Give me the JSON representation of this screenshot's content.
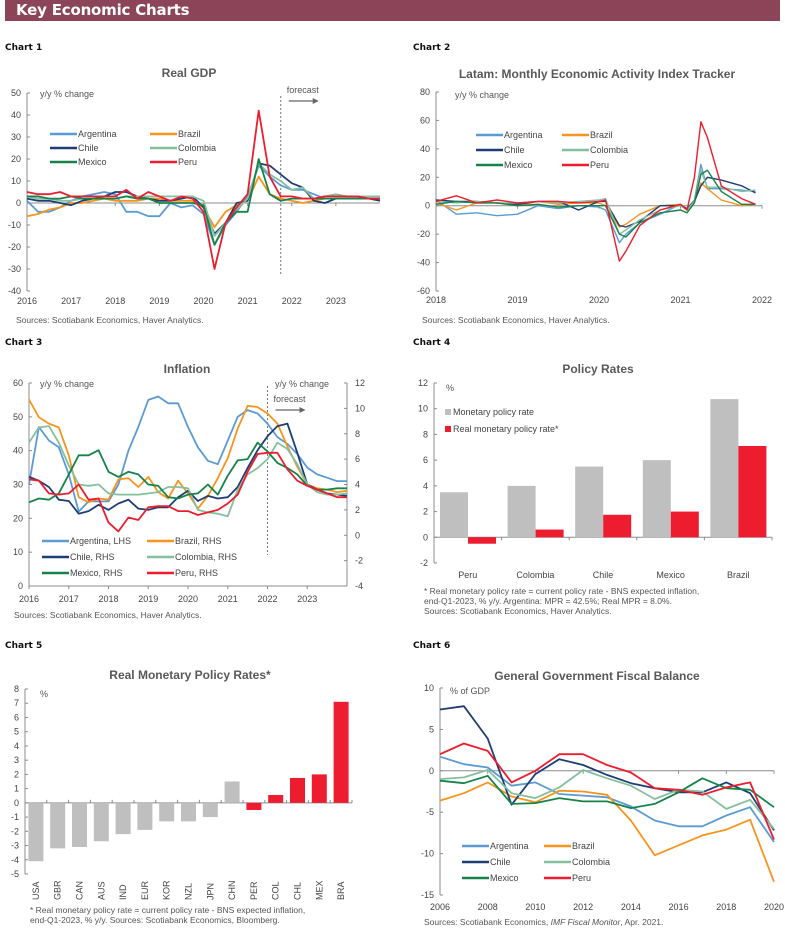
{
  "header": {
    "title": "Key Economic Charts"
  },
  "colors": {
    "Argentina": "#5b9bd5",
    "Brazil": "#f7941d",
    "Chile": "#1f3e75",
    "Colombia": "#86bf9e",
    "Mexico": "#17824a",
    "Peru": "#ed1c2e",
    "gray_bar": "#bfbfbf",
    "red_bar": "#ed1c2e",
    "banner": "#8c4459"
  },
  "chart_data": [
    {
      "id": "chart1",
      "label": "Chart 1",
      "type": "line",
      "title": "Real GDP",
      "ylabel": "y/y % change",
      "ylim": [
        -40,
        50
      ],
      "yticks": [
        -40,
        -30,
        -20,
        -10,
        0,
        10,
        20,
        30,
        40,
        50
      ],
      "xlim": [
        2016,
        2024
      ],
      "xticks": [
        "2016",
        "2017",
        "2018",
        "2019",
        "2020",
        "2021",
        "2022",
        "2023"
      ],
      "forecast_label": "forecast",
      "forecast_x": 2021.75,
      "source": "Sources: Scotiabank Economics, Haver Analytics.",
      "x": [
        2016,
        2016.25,
        2016.5,
        2016.75,
        2017,
        2017.25,
        2017.5,
        2017.75,
        2018,
        2018.25,
        2018.5,
        2018.75,
        2019,
        2019.25,
        2019.5,
        2019.75,
        2020,
        2020.25,
        2020.5,
        2020.75,
        2021,
        2021.25,
        2021.5,
        2021.75,
        2022,
        2022.25,
        2022.5,
        2022.75,
        2023,
        2023.25,
        2023.5,
        2023.75,
        2024
      ],
      "series": [
        {
          "name": "Argentina",
          "values": [
            1,
            -4,
            -4,
            -2,
            1,
            3,
            4,
            5,
            4,
            -4,
            -4,
            -6,
            -6,
            0,
            -2,
            -1,
            -5,
            -19,
            -10,
            -4,
            3,
            17,
            12,
            8,
            6,
            6,
            4,
            2,
            2,
            2,
            2,
            2,
            2
          ]
        },
        {
          "name": "Brazil",
          "values": [
            -6,
            -5,
            -3,
            -2,
            0,
            0,
            1,
            2,
            1,
            1,
            1,
            2,
            2,
            1,
            1,
            1,
            -2,
            -11,
            -4,
            -1,
            1,
            12,
            4,
            2,
            1,
            0,
            1,
            2,
            2,
            2,
            2,
            2,
            2
          ]
        },
        {
          "name": "Chile",
          "values": [
            2,
            1,
            1,
            0,
            -1,
            1,
            2,
            3,
            5,
            5,
            3,
            2,
            1,
            1,
            2,
            3,
            -2,
            -14,
            -9,
            0,
            1,
            18,
            17,
            13,
            9,
            7,
            1,
            0,
            2,
            2,
            2,
            2,
            1
          ]
        },
        {
          "name": "Colombia",
          "values": [
            3,
            2,
            2,
            1,
            1,
            2,
            2,
            2,
            2,
            3,
            3,
            3,
            3,
            3,
            3,
            3,
            1,
            -15,
            -9,
            -3,
            2,
            18,
            13,
            10,
            6,
            7,
            2,
            3,
            4,
            3,
            3,
            3,
            3
          ]
        },
        {
          "name": "Mexico",
          "values": [
            3,
            3,
            2,
            2,
            3,
            2,
            2,
            2,
            2,
            3,
            2,
            2,
            0,
            0,
            0,
            0,
            -1,
            -19,
            -9,
            -4,
            -4,
            20,
            4,
            1,
            2,
            2,
            2,
            2,
            2,
            2,
            2,
            2,
            2
          ]
        },
        {
          "name": "Peru",
          "values": [
            5,
            4,
            4,
            5,
            3,
            3,
            3,
            3,
            3,
            6,
            2,
            5,
            3,
            1,
            3,
            2,
            -4,
            -30,
            -9,
            -2,
            4,
            42,
            12,
            3,
            3,
            2,
            2,
            3,
            3,
            3,
            3,
            2,
            2
          ]
        }
      ]
    },
    {
      "id": "chart2",
      "label": "Chart 2",
      "type": "line",
      "title": "Latam: Monthly Economic Activity Index Tracker",
      "ylabel": "y/y % change",
      "ylim": [
        -60,
        80
      ],
      "yticks": [
        -60,
        -40,
        -20,
        0,
        20,
        40,
        60,
        80
      ],
      "xlim": [
        2018,
        2022
      ],
      "xticks": [
        "2018",
        "2019",
        "2020",
        "2021",
        "2022"
      ],
      "source": "Sources: Scotiabank Economics, Haver Analytics.",
      "x": [
        2018,
        2018.25,
        2018.5,
        2018.75,
        2019,
        2019.25,
        2019.5,
        2019.75,
        2020,
        2020.08,
        2020.25,
        2020.33,
        2020.5,
        2020.75,
        2021,
        2021.08,
        2021.17,
        2021.25,
        2021.33,
        2021.5,
        2021.75,
        2021.92
      ],
      "series": [
        {
          "name": "Argentina",
          "values": [
            4,
            -6,
            -5,
            -7,
            -6,
            0,
            -2,
            0,
            -1,
            -3,
            -26,
            -20,
            -12,
            -6,
            1,
            -2,
            4,
            29,
            12,
            12,
            11,
            10
          ]
        },
        {
          "name": "Brazil",
          "values": [
            2,
            -3,
            2,
            2,
            0,
            3,
            1,
            2,
            2,
            0,
            -15,
            -13,
            -6,
            0,
            1,
            -3,
            2,
            16,
            12,
            4,
            0,
            1
          ]
        },
        {
          "name": "Chile",
          "values": [
            4,
            3,
            3,
            2,
            1,
            3,
            3,
            -3,
            3,
            3,
            -14,
            -15,
            -11,
            0,
            0,
            -2,
            3,
            14,
            20,
            18,
            14,
            9
          ]
        },
        {
          "name": "Colombia",
          "values": [
            3,
            2,
            3,
            2,
            2,
            3,
            2,
            3,
            4,
            5,
            -20,
            -17,
            -10,
            -3,
            0,
            -3,
            3,
            25,
            13,
            13,
            10,
            11
          ]
        },
        {
          "name": "Mexico",
          "values": [
            1,
            3,
            2,
            2,
            0,
            1,
            -1,
            0,
            0,
            0,
            -20,
            -22,
            -12,
            -5,
            -3,
            -5,
            2,
            22,
            25,
            10,
            1,
            1
          ]
        },
        {
          "name": "Peru",
          "values": [
            3,
            7,
            2,
            4,
            2,
            3,
            3,
            2,
            3,
            4,
            -39,
            -32,
            -14,
            -3,
            1,
            -3,
            20,
            59,
            48,
            14,
            5,
            1
          ]
        }
      ]
    },
    {
      "id": "chart3",
      "label": "Chart 3",
      "type": "line",
      "title": "Inflation",
      "ylabel": "y/y % change",
      "ylabel_right": "y/y % change",
      "ylim": [
        0,
        60
      ],
      "yticks": [
        0,
        10,
        20,
        30,
        40,
        50,
        60
      ],
      "ylim_right": [
        -4,
        12
      ],
      "yticks_right": [
        -4,
        -2,
        0,
        2,
        4,
        6,
        8,
        10,
        12
      ],
      "xlim": [
        2016,
        2024
      ],
      "xticks": [
        "2016",
        "2017",
        "2018",
        "2019",
        "2020",
        "2021",
        "2022",
        "2023"
      ],
      "forecast_label": "forecast",
      "forecast_x": 2022,
      "source": "Sources: Scotiabank Economics, Haver Analytics.",
      "x": [
        2016,
        2016.25,
        2016.5,
        2016.75,
        2017,
        2017.25,
        2017.5,
        2017.75,
        2018,
        2018.25,
        2018.5,
        2018.75,
        2019,
        2019.25,
        2019.5,
        2019.75,
        2020,
        2020.25,
        2020.5,
        2020.75,
        2021,
        2021.25,
        2021.5,
        2021.75,
        2022,
        2022.25,
        2022.5,
        2022.75,
        2023,
        2023.25,
        2023.5,
        2023.75,
        2024
      ],
      "series": [
        {
          "name": "Argentina, LHS",
          "axis": "left",
          "values": [
            30,
            47,
            43,
            41,
            33,
            22,
            25,
            25,
            25,
            30,
            40,
            47,
            55,
            56,
            54,
            54,
            47,
            41,
            37,
            36,
            43,
            50,
            52,
            51,
            48,
            44,
            42,
            39,
            35,
            33,
            32,
            31,
            31
          ]
        },
        {
          "name": "Brazil, RHS",
          "axis": "right",
          "values": [
            10.7,
            9.3,
            8.8,
            8.5,
            6.3,
            3.0,
            2.6,
            2.9,
            2.8,
            4.4,
            4.5,
            3.8,
            4.6,
            3.4,
            2.9,
            4.3,
            3.3,
            2.1,
            3.1,
            4.5,
            6.1,
            8.4,
            10.2,
            10.1,
            9.6,
            8.8,
            7.0,
            5.4,
            4.0,
            3.7,
            3.6,
            3.4,
            3.5
          ]
        },
        {
          "name": "Chile, RHS",
          "axis": "right",
          "values": [
            4.6,
            4.3,
            3.8,
            2.8,
            2.7,
            1.7,
            1.9,
            2.4,
            2.0,
            2.5,
            2.8,
            2.1,
            2.0,
            2.2,
            2.2,
            3.0,
            3.5,
            2.7,
            3.1,
            2.9,
            3.0,
            3.8,
            5.3,
            6.7,
            7.8,
            8.6,
            8.8,
            6.5,
            4.0,
            3.6,
            3.3,
            3.2,
            3.1
          ]
        },
        {
          "name": "Colombia, RHS",
          "axis": "right",
          "values": [
            7.3,
            8.5,
            8.6,
            7.3,
            5.5,
            4.0,
            3.9,
            4.0,
            3.3,
            3.2,
            3.2,
            3.2,
            3.3,
            3.4,
            3.8,
            3.8,
            3.7,
            2.0,
            1.8,
            1.7,
            1.5,
            3.6,
            4.8,
            5.3,
            6.0,
            7.3,
            6.8,
            5.6,
            4.0,
            3.4,
            3.2,
            3.2,
            3.3
          ]
        },
        {
          "name": "Mexico, RHS",
          "axis": "right",
          "values": [
            2.6,
            2.9,
            2.8,
            3.3,
            4.8,
            6.3,
            6.3,
            6.7,
            5.0,
            4.6,
            5.0,
            4.8,
            4.0,
            3.9,
            3.0,
            2.9,
            3.2,
            3.3,
            4.0,
            3.2,
            4.7,
            5.9,
            6.0,
            7.3,
            6.6,
            5.7,
            5.3,
            4.8,
            3.9,
            3.6,
            3.6,
            3.7,
            3.7
          ]
        },
        {
          "name": "Peru, RHS",
          "axis": "right",
          "values": [
            4.4,
            4.3,
            3.3,
            3.2,
            3.3,
            4.0,
            2.8,
            2.9,
            1.0,
            0.3,
            1.4,
            1.2,
            2.2,
            2.3,
            2.3,
            1.9,
            1.9,
            1.6,
            1.8,
            2.0,
            2.5,
            3.2,
            5.0,
            6.4,
            6.5,
            6.5,
            5.2,
            4.3,
            3.9,
            3.6,
            3.3,
            3.0,
            3.0
          ]
        }
      ]
    },
    {
      "id": "chart4",
      "label": "Chart 4",
      "type": "bar",
      "title": "Policy Rates",
      "ylabel": "%",
      "ylim": [
        -2,
        12
      ],
      "yticks": [
        -2,
        0,
        2,
        4,
        6,
        8,
        10,
        12
      ],
      "categories": [
        "Peru",
        "Colombia",
        "Chile",
        "Mexico",
        "Brazil"
      ],
      "series": [
        {
          "name": "Monetary policy rate",
          "color": "#bfbfbf",
          "values": [
            3.5,
            4.0,
            5.5,
            6.0,
            10.75
          ]
        },
        {
          "name": "Real monetary policy rate*",
          "color": "#ed1c2e",
          "values": [
            -0.5,
            0.6,
            1.75,
            2.0,
            7.1
          ]
        }
      ],
      "notes": [
        "* Real monetary policy rate = current policy rate - BNS expected inflation,",
        "end-Q1-2023, % y/y. Argentina: MPR = 42.5%; Real MPR = 8.0%.",
        "Sources: Scotiabank Economics, Haver Analytics."
      ]
    },
    {
      "id": "chart5",
      "label": "Chart 5",
      "type": "bar",
      "title": "Real Monetary Policy Rates*",
      "ylabel": "%",
      "ylim": [
        -5,
        8
      ],
      "yticks": [
        -5,
        -4,
        -3,
        -2,
        -1,
        0,
        1,
        2,
        3,
        4,
        5,
        6,
        7,
        8
      ],
      "categories": [
        "USA",
        "GBR",
        "CAN",
        "AUS",
        "IND",
        "EUR",
        "KOR",
        "NZL",
        "JPN",
        "CHN",
        "PER",
        "COL",
        "CHL",
        "MEX",
        "BRA"
      ],
      "values": [
        -4.1,
        -3.2,
        -3.1,
        -2.7,
        -2.2,
        -1.9,
        -1.3,
        -1.3,
        -1.0,
        1.5,
        -0.5,
        0.55,
        1.75,
        2.0,
        7.1
      ],
      "bar_colors": [
        "gray",
        "gray",
        "gray",
        "gray",
        "gray",
        "gray",
        "gray",
        "gray",
        "gray",
        "gray",
        "red",
        "red",
        "red",
        "red",
        "red"
      ],
      "notes": [
        "* Real monetary policy rate = current policy rate - BNS expected inflation,",
        "end-Q1-2023, % y/y. Sources: Scotiabank Economics, Bloomberg."
      ]
    },
    {
      "id": "chart6",
      "label": "Chart 6",
      "type": "line",
      "title": "General Government Fiscal Balance",
      "ylabel": "% of GDP",
      "ylim": [
        -15,
        10
      ],
      "yticks": [
        -15,
        -10,
        -5,
        0,
        5,
        10
      ],
      "xlim": [
        2006,
        2020
      ],
      "xticks": [
        "2006",
        "2008",
        "2010",
        "2012",
        "2014",
        "2016",
        "2018",
        "2020"
      ],
      "source_prefix": "Sources: Scotiabank Economics, ",
      "source_italic": "IMF Fiscal Monitor",
      "source_suffix": ", Apr. 2021.",
      "x": [
        2006,
        2007,
        2008,
        2009,
        2010,
        2011,
        2012,
        2013,
        2014,
        2015,
        2016,
        2017,
        2018,
        2019,
        2020
      ],
      "series": [
        {
          "name": "Argentina",
          "values": [
            1.7,
            0.8,
            0.4,
            -1.8,
            -1.4,
            -2.8,
            -3.0,
            -3.2,
            -4.3,
            -6.0,
            -6.7,
            -6.7,
            -5.4,
            -4.4,
            -8.6
          ]
        },
        {
          "name": "Brazil",
          "values": [
            -3.6,
            -2.7,
            -1.4,
            -3.1,
            -3.8,
            -2.4,
            -2.5,
            -2.9,
            -6.0,
            -10.2,
            -9.0,
            -7.8,
            -7.1,
            -5.9,
            -13.4
          ]
        },
        {
          "name": "Chile",
          "values": [
            7.4,
            7.8,
            3.9,
            -4.1,
            -0.4,
            1.4,
            0.7,
            -0.5,
            -1.5,
            -2.1,
            -2.6,
            -2.6,
            -1.4,
            -2.7,
            -7.2
          ]
        },
        {
          "name": "Colombia",
          "values": [
            -1.0,
            -0.8,
            0.1,
            -2.7,
            -3.3,
            -2.0,
            0.1,
            -0.9,
            -1.8,
            -3.4,
            -2.3,
            -2.5,
            -4.6,
            -3.5,
            -7.0
          ]
        },
        {
          "name": "Mexico",
          "values": [
            -1.2,
            -1.5,
            -0.6,
            -4.0,
            -3.9,
            -3.3,
            -3.7,
            -3.7,
            -4.5,
            -4.0,
            -2.6,
            -0.9,
            -2.1,
            -2.3,
            -4.4
          ]
        },
        {
          "name": "Peru",
          "values": [
            2.0,
            3.3,
            2.4,
            -1.4,
            0.0,
            2.0,
            2.0,
            0.7,
            -0.2,
            -2.1,
            -2.3,
            -2.9,
            -2.0,
            -1.4,
            -8.3
          ]
        }
      ]
    }
  ]
}
